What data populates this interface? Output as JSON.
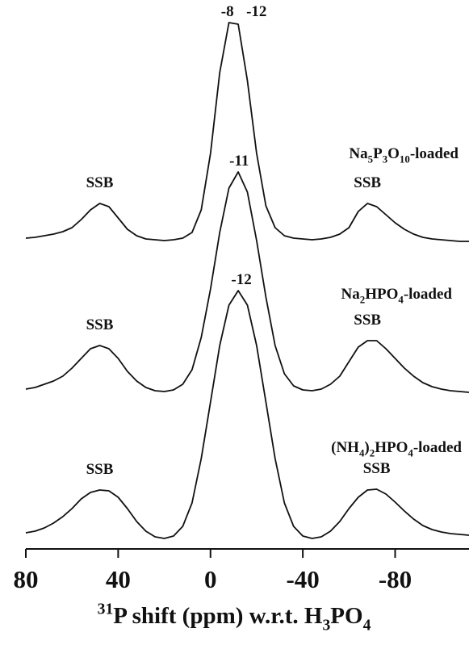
{
  "chart_data": {
    "type": "line",
    "x_label": "31P shift (ppm) w.r.t. H3PO4",
    "xlim": [
      80,
      -112
    ],
    "xticks": [
      80,
      40,
      0,
      -40,
      -80
    ],
    "ylim": [
      0,
      310
    ],
    "x": [
      80,
      76,
      72,
      68,
      64,
      60,
      56,
      52,
      48,
      44,
      40,
      36,
      32,
      28,
      24,
      20,
      16,
      12,
      8,
      4,
      0,
      -4,
      -8,
      -12,
      -16,
      -20,
      -24,
      -28,
      -32,
      -36,
      -40,
      -44,
      -48,
      -52,
      -56,
      -60,
      -64,
      -68,
      -72,
      -76,
      -80,
      -84,
      -88,
      -92,
      -96,
      -100,
      -104,
      -108,
      -112
    ],
    "series": [
      {
        "name": "Na5P3O10-loaded",
        "color": "#111111",
        "peak_labels": [
          -8,
          -12
        ],
        "side_labels": [
          "SSB",
          "SSB"
        ],
        "values": [
          5,
          6,
          8,
          10,
          13,
          18,
          28,
          40,
          48,
          44,
          30,
          16,
          8,
          4,
          3,
          2,
          3,
          5,
          12,
          40,
          110,
          210,
          272,
          270,
          200,
          110,
          45,
          18,
          8,
          5,
          4,
          3,
          4,
          6,
          10,
          18,
          38,
          48,
          44,
          34,
          24,
          16,
          10,
          6,
          4,
          3,
          2,
          1,
          1
        ]
      },
      {
        "name": "Na2HPO4-loaded",
        "color": "#111111",
        "peak_labels": [
          -11
        ],
        "side_labels": [
          "SSB",
          "SSB"
        ],
        "values": [
          6,
          8,
          12,
          16,
          22,
          32,
          44,
          56,
          60,
          56,
          44,
          28,
          16,
          8,
          4,
          3,
          5,
          12,
          30,
          70,
          130,
          200,
          255,
          275,
          250,
          190,
          120,
          60,
          25,
          10,
          5,
          4,
          6,
          12,
          22,
          40,
          58,
          66,
          66,
          56,
          44,
          32,
          22,
          14,
          9,
          6,
          4,
          3,
          2
        ]
      },
      {
        "name": "(NH4)2HPO4-loaded",
        "color": "#111111",
        "peak_labels": [
          -12
        ],
        "side_labels": [
          "SSB",
          "SSB"
        ],
        "values": [
          8,
          10,
          14,
          20,
          28,
          38,
          50,
          58,
          61,
          60,
          52,
          38,
          22,
          10,
          3,
          1,
          4,
          16,
          45,
          100,
          170,
          240,
          290,
          308,
          290,
          240,
          170,
          100,
          45,
          16,
          4,
          1,
          3,
          10,
          22,
          38,
          52,
          61,
          62,
          56,
          46,
          35,
          25,
          17,
          12,
          9,
          7,
          6,
          5
        ]
      }
    ]
  }
}
